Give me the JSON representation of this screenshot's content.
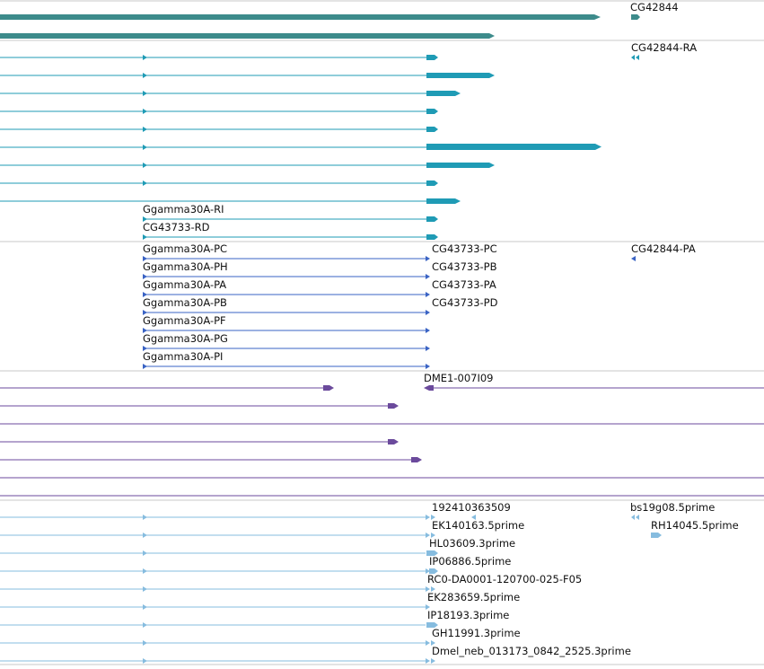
{
  "colors": {
    "divider": "#c8c8c8",
    "gene": "#3d8b8b",
    "transcript_ra": "#1f9bb5",
    "transcript_pa": "#3a63c4",
    "cdna": "#6b4a9c",
    "est": "#86bcdf"
  },
  "tracks": {
    "gene": {
      "labels": [
        "CG42844"
      ]
    },
    "transcripts_ra": {
      "labels": [
        "CG42844-RA",
        "Ggamma30A-RI",
        "CG43733-RD"
      ]
    },
    "transcripts_pa": {
      "labels": [
        "Ggamma30A-PC",
        "Ggamma30A-PH",
        "Ggamma30A-PA",
        "Ggamma30A-PB",
        "Ggamma30A-PF",
        "Ggamma30A-PG",
        "Ggamma30A-PI",
        "CG43733-PC",
        "CG43733-PB",
        "CG43733-PA",
        "CG43733-PD",
        "CG42844-PA"
      ]
    },
    "cdna": {
      "labels": [
        "DME1-007I09"
      ]
    },
    "est": {
      "labels": [
        "192410363509",
        "EK140163.5prime",
        "HL03609.3prime",
        "IP06886.5prime",
        "RC0-DA0001-120700-025-F05",
        "EK283659.5prime",
        "IP18193.3prime",
        "GH11991.3prime",
        "Dmel_neb_013173_0842_2525.3prime",
        "bs19g08.5prime",
        "RH14045.5prime"
      ]
    }
  }
}
